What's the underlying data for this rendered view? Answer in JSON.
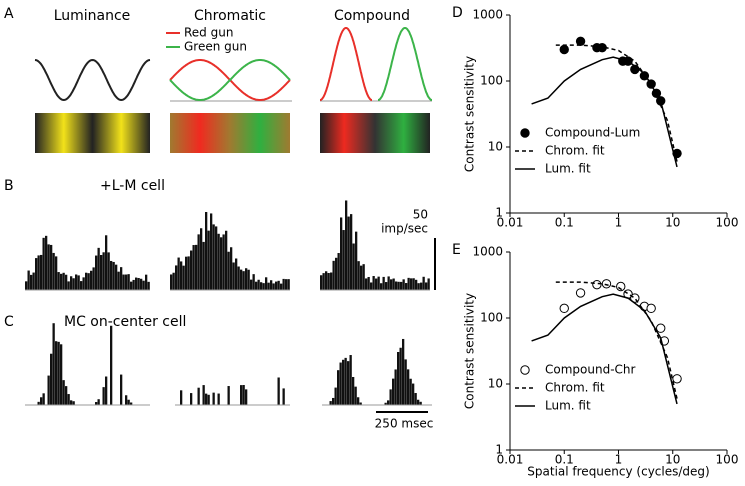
{
  "panels": {
    "labels": [
      "A",
      "B",
      "C"
    ],
    "columns": [
      "Luminance",
      "Chromatic",
      "Compound"
    ],
    "guns": [
      "Red gun",
      "Green gun"
    ],
    "rows": [
      "+L-M cell",
      "MC  on-center cell"
    ],
    "scale": {
      "rate_value": "50",
      "rate_unit": "imp/sec",
      "time": "250 msec"
    }
  },
  "chart_data": [
    {
      "type": "line",
      "label": "D",
      "y_label": "Contrast sensitivity",
      "log": true,
      "xlim": [
        0.01,
        100
      ],
      "ylim": [
        1,
        1000
      ],
      "xticks": [
        0.01,
        0.1,
        1,
        10,
        100
      ],
      "yticks": [
        1,
        10,
        100,
        1000
      ],
      "series": [
        {
          "name": "Compound-Lum",
          "kind": "scatter",
          "marker": "filled",
          "color": "#000000",
          "x": [
            0.1,
            0.2,
            0.4,
            0.5,
            1.2,
            1.5,
            2,
            3,
            4,
            5,
            6,
            12
          ],
          "values": [
            300,
            400,
            320,
            320,
            200,
            200,
            150,
            120,
            90,
            65,
            50,
            8
          ]
        },
        {
          "name": "Chrom. fit",
          "kind": "line",
          "dash": true,
          "color": "#000000",
          "x": [
            0.07,
            0.2,
            0.5,
            1,
            2,
            4,
            8,
            12
          ],
          "values": [
            350,
            350,
            330,
            290,
            200,
            90,
            25,
            6
          ]
        },
        {
          "name": "Lum. fit",
          "kind": "line",
          "dash": false,
          "color": "#000000",
          "x": [
            0.025,
            0.05,
            0.1,
            0.2,
            0.5,
            0.8,
            1.5,
            3,
            6,
            12
          ],
          "values": [
            45,
            55,
            100,
            150,
            210,
            230,
            200,
            130,
            50,
            5
          ]
        }
      ]
    },
    {
      "type": "line",
      "label": "E",
      "y_label": "Contrast sensitivity",
      "x_label": "Spatial frequency (cycles/deg)",
      "log": true,
      "xlim": [
        0.01,
        100
      ],
      "ylim": [
        1,
        1000
      ],
      "xticks": [
        0.01,
        0.1,
        1,
        10,
        100
      ],
      "yticks": [
        1,
        10,
        100,
        1000
      ],
      "series": [
        {
          "name": "Compound-Chr",
          "kind": "scatter",
          "marker": "open",
          "color": "#000000",
          "x": [
            0.1,
            0.2,
            0.4,
            0.6,
            1.1,
            1.5,
            2,
            3,
            4,
            6,
            7,
            12
          ],
          "values": [
            140,
            240,
            320,
            330,
            300,
            230,
            200,
            150,
            140,
            70,
            45,
            12
          ]
        },
        {
          "name": "Chrom. fit",
          "kind": "line",
          "dash": true,
          "color": "#000000",
          "x": [
            0.07,
            0.2,
            0.5,
            1,
            2,
            4,
            8,
            12
          ],
          "values": [
            350,
            350,
            330,
            290,
            200,
            90,
            25,
            6
          ]
        },
        {
          "name": "Lum. fit",
          "kind": "line",
          "dash": false,
          "color": "#000000",
          "x": [
            0.025,
            0.05,
            0.1,
            0.2,
            0.5,
            0.8,
            1.5,
            3,
            6,
            12
          ],
          "values": [
            45,
            55,
            100,
            150,
            210,
            230,
            200,
            130,
            50,
            5
          ]
        }
      ]
    }
  ]
}
